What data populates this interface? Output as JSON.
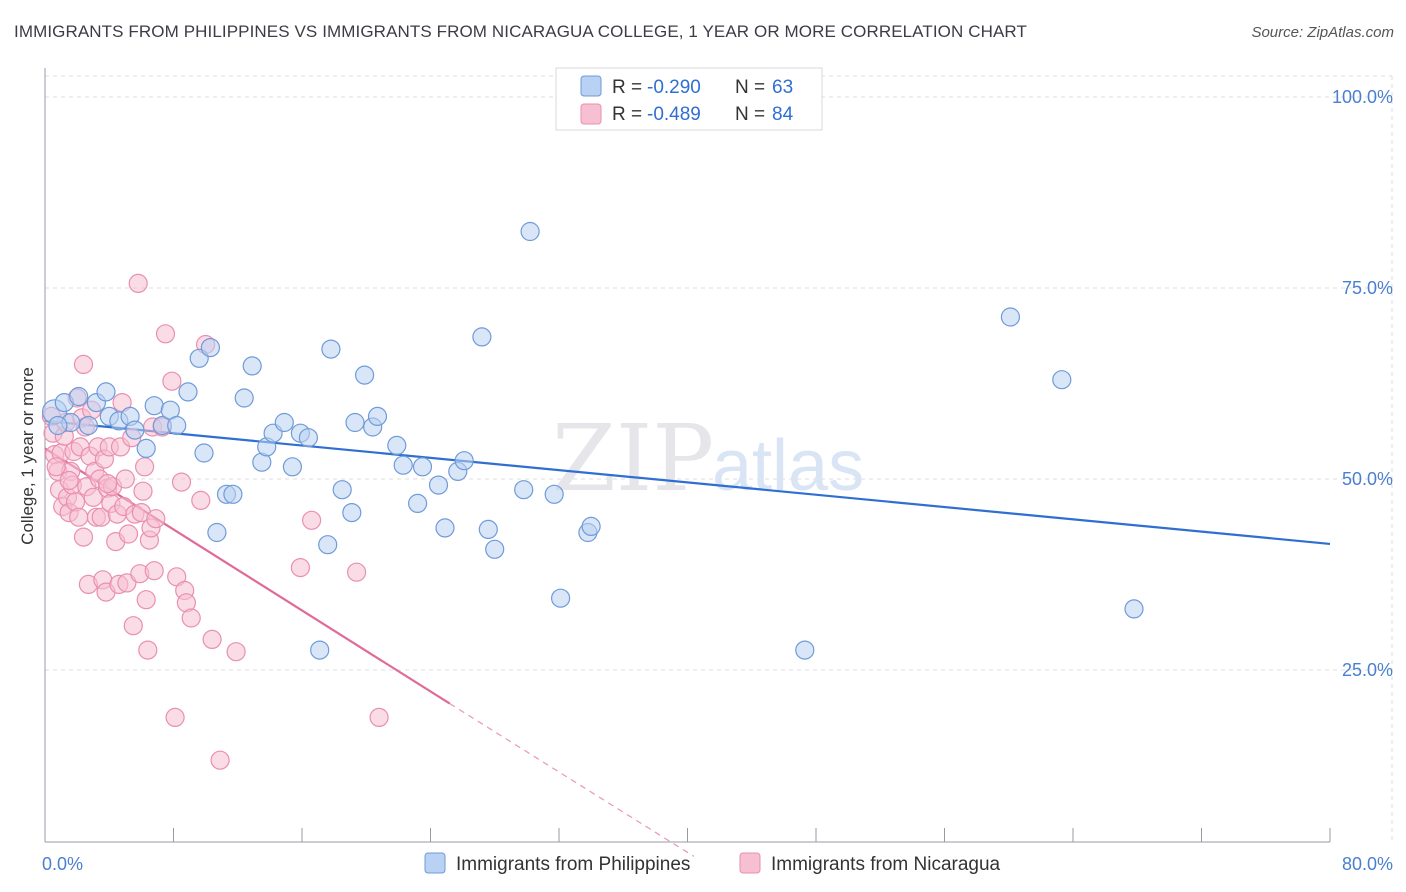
{
  "title": "IMMIGRANTS FROM PHILIPPINES VS IMMIGRANTS FROM NICARAGUA COLLEGE, 1 YEAR OR MORE CORRELATION CHART",
  "source": "Source: ZipAtlas.com",
  "watermark": {
    "zip": "ZIP",
    "atlas": "atlas"
  },
  "colors": {
    "blue_fill": "#b9d1f2",
    "blue_stroke": "#6f9bd8",
    "blue_line": "#2f6fd1",
    "pink_fill": "#f6c0d2",
    "pink_stroke": "#ea8fb0",
    "pink_line": "#e06a98",
    "grid": "#dcdce2",
    "axis_text": "#4a7fd0"
  },
  "legend": {
    "rows": [
      {
        "r_label": "R = ",
        "r_value": "-0.290",
        "n_label": "N = ",
        "n_value": "63"
      },
      {
        "r_label": "R = ",
        "r_value": "-0.489",
        "n_label": "N = ",
        "n_value": "84"
      }
    ]
  },
  "bottom_legend": [
    "Immigrants from Philippines",
    "Immigrants from Nicaragua"
  ],
  "chart_data": {
    "type": "scatter",
    "xlabel": "",
    "ylabel": "College, 1 year or more",
    "xlim": [
      0,
      80
    ],
    "ylim": [
      0,
      105
    ],
    "x_tick_labels": [
      "0.0%",
      "80.0%"
    ],
    "y_ticks": [
      25,
      50,
      75,
      100
    ],
    "y_tick_labels": [
      "25.0%",
      "50.0%",
      "75.0%",
      "100.0%"
    ],
    "grid": true,
    "series": [
      {
        "name": "Immigrants from Philippines",
        "R": -0.29,
        "N": 63,
        "trend": {
          "x": [
            0,
            80
          ],
          "y": [
            57.6,
            41.5
          ]
        },
        "points": [
          [
            0.6,
            58.8
          ],
          [
            1.2,
            60.0
          ],
          [
            1.6,
            57.4
          ],
          [
            2.1,
            60.8
          ],
          [
            2.7,
            57.0
          ],
          [
            3.2,
            60.0
          ],
          [
            3.8,
            61.4
          ],
          [
            4.0,
            58.2
          ],
          [
            4.6,
            57.6
          ],
          [
            5.3,
            58.2
          ],
          [
            5.6,
            56.4
          ],
          [
            6.3,
            54.0
          ],
          [
            6.8,
            59.6
          ],
          [
            7.3,
            57.0
          ],
          [
            7.8,
            59.0
          ],
          [
            8.2,
            57.0
          ],
          [
            8.9,
            61.4
          ],
          [
            9.6,
            65.8
          ],
          [
            9.9,
            53.4
          ],
          [
            10.3,
            67.2
          ],
          [
            10.7,
            43.0
          ],
          [
            11.3,
            48.0
          ],
          [
            11.7,
            48.0
          ],
          [
            12.4,
            60.6
          ],
          [
            12.9,
            64.8
          ],
          [
            13.5,
            52.2
          ],
          [
            13.8,
            54.2
          ],
          [
            14.2,
            56.0
          ],
          [
            14.9,
            57.4
          ],
          [
            15.4,
            51.6
          ],
          [
            15.9,
            56.0
          ],
          [
            16.4,
            55.4
          ],
          [
            17.1,
            27.6
          ],
          [
            17.6,
            41.4
          ],
          [
            17.8,
            67.0
          ],
          [
            18.5,
            48.6
          ],
          [
            19.1,
            45.6
          ],
          [
            19.3,
            57.4
          ],
          [
            19.9,
            63.6
          ],
          [
            20.4,
            56.8
          ],
          [
            20.7,
            58.2
          ],
          [
            21.9,
            54.4
          ],
          [
            22.3,
            51.8
          ],
          [
            23.2,
            46.8
          ],
          [
            23.5,
            51.6
          ],
          [
            24.5,
            49.2
          ],
          [
            24.9,
            43.6
          ],
          [
            25.7,
            51.0
          ],
          [
            26.1,
            52.4
          ],
          [
            27.2,
            68.6
          ],
          [
            27.6,
            43.4
          ],
          [
            28.0,
            40.8
          ],
          [
            29.8,
            48.6
          ],
          [
            30.2,
            82.4
          ],
          [
            31.7,
            48.0
          ],
          [
            32.1,
            34.4
          ],
          [
            33.8,
            43.0
          ],
          [
            34.0,
            43.8
          ],
          [
            47.3,
            27.6
          ],
          [
            60.1,
            71.2
          ],
          [
            63.3,
            63.0
          ],
          [
            67.8,
            33.0
          ],
          [
            0.8,
            57.0
          ]
        ]
      },
      {
        "name": "Immigrants from Nicaragua",
        "R": -0.489,
        "N": 84,
        "trend": {
          "x": [
            0,
            25.2
          ],
          "y": [
            54.0,
            20.6
          ]
        },
        "trend_dashed": {
          "x": [
            25.2,
            40.4
          ],
          "y": [
            20.6,
            0.6
          ]
        },
        "points": [
          [
            0.4,
            58.2
          ],
          [
            0.5,
            56.0
          ],
          [
            0.6,
            53.2
          ],
          [
            0.8,
            51.0
          ],
          [
            0.9,
            48.6
          ],
          [
            1.0,
            53.4
          ],
          [
            1.1,
            46.4
          ],
          [
            1.2,
            55.6
          ],
          [
            1.3,
            57.4
          ],
          [
            1.4,
            47.6
          ],
          [
            1.5,
            45.6
          ],
          [
            1.6,
            51.0
          ],
          [
            1.7,
            49.2
          ],
          [
            1.8,
            53.6
          ],
          [
            1.9,
            47.0
          ],
          [
            2.0,
            60.6
          ],
          [
            2.1,
            45.0
          ],
          [
            2.2,
            54.2
          ],
          [
            2.3,
            58.0
          ],
          [
            2.4,
            65.0
          ],
          [
            2.5,
            56.8
          ],
          [
            2.6,
            49.0
          ],
          [
            2.7,
            36.2
          ],
          [
            2.8,
            53.0
          ],
          [
            2.9,
            59.0
          ],
          [
            3.0,
            47.6
          ],
          [
            3.1,
            51.0
          ],
          [
            3.2,
            45.0
          ],
          [
            3.3,
            54.2
          ],
          [
            3.4,
            50.0
          ],
          [
            3.5,
            45.0
          ],
          [
            3.6,
            36.8
          ],
          [
            3.7,
            52.6
          ],
          [
            3.8,
            35.2
          ],
          [
            3.9,
            48.8
          ],
          [
            4.0,
            54.2
          ],
          [
            4.1,
            46.8
          ],
          [
            4.2,
            49.0
          ],
          [
            4.4,
            41.8
          ],
          [
            4.5,
            45.4
          ],
          [
            4.6,
            36.2
          ],
          [
            4.7,
            54.2
          ],
          [
            4.8,
            60.0
          ],
          [
            4.9,
            46.4
          ],
          [
            5.0,
            50.0
          ],
          [
            5.1,
            36.4
          ],
          [
            5.2,
            42.8
          ],
          [
            5.4,
            55.4
          ],
          [
            5.5,
            30.8
          ],
          [
            5.6,
            45.4
          ],
          [
            5.8,
            75.6
          ],
          [
            5.9,
            37.6
          ],
          [
            6.0,
            45.6
          ],
          [
            6.1,
            48.4
          ],
          [
            6.2,
            51.6
          ],
          [
            6.3,
            34.2
          ],
          [
            6.4,
            27.6
          ],
          [
            6.5,
            42.0
          ],
          [
            6.6,
            43.6
          ],
          [
            6.7,
            56.8
          ],
          [
            6.8,
            38.0
          ],
          [
            6.9,
            44.8
          ],
          [
            7.3,
            56.8
          ],
          [
            7.5,
            69.0
          ],
          [
            7.9,
            62.8
          ],
          [
            8.1,
            18.8
          ],
          [
            8.2,
            37.2
          ],
          [
            8.5,
            49.6
          ],
          [
            8.7,
            35.4
          ],
          [
            8.8,
            33.8
          ],
          [
            9.1,
            31.8
          ],
          [
            9.7,
            47.2
          ],
          [
            10.0,
            67.6
          ],
          [
            10.4,
            29.0
          ],
          [
            10.9,
            13.2
          ],
          [
            11.9,
            27.4
          ],
          [
            15.9,
            38.4
          ],
          [
            16.6,
            44.6
          ],
          [
            19.4,
            37.8
          ],
          [
            20.8,
            18.8
          ],
          [
            3.9,
            49.4
          ],
          [
            2.4,
            42.4
          ],
          [
            0.7,
            51.6
          ],
          [
            1.5,
            49.8
          ]
        ]
      }
    ]
  }
}
